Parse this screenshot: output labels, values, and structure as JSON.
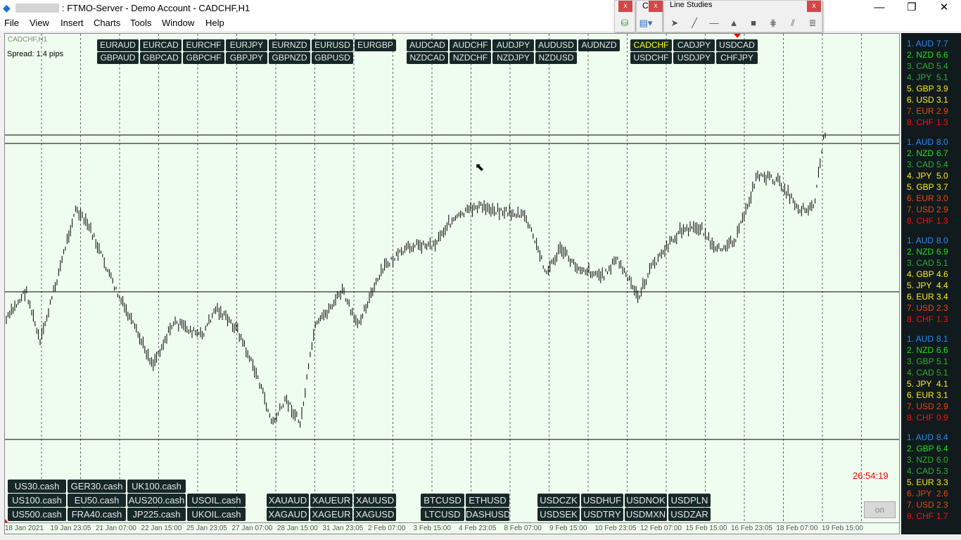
{
  "window": {
    "title": ": FTMO-Server - Demo Account - CADCHF,H1",
    "minimize": "—",
    "restore": "❐",
    "close": "✕"
  },
  "menu": [
    "File",
    "View",
    "Insert",
    "Charts",
    "Tools",
    "Window",
    "Help"
  ],
  "toolbars": {
    "t1_close": "x",
    "t2_close": "x",
    "t2_label": "C",
    "line_studies_title": "Line Studies",
    "line_studies_close": "x",
    "tools": [
      {
        "icon": "cursor-icon",
        "glyph": "➤"
      },
      {
        "icon": "trendline-icon",
        "glyph": "╱"
      },
      {
        "icon": "horizontal-line-icon",
        "glyph": "—"
      },
      {
        "icon": "triangle-icon",
        "glyph": "▲"
      },
      {
        "icon": "rectangle-icon",
        "glyph": "■"
      },
      {
        "icon": "gann-icon",
        "glyph": "⋕"
      },
      {
        "icon": "pitchfork-icon",
        "glyph": "⫽"
      },
      {
        "icon": "fibonacci-icon",
        "glyph": "≣"
      }
    ]
  },
  "chart": {
    "symbol": "CADCHF,H1",
    "spread": "Spread: 1.4 pips",
    "timer": "26:54:19",
    "on_button": "on",
    "timer_color": "#ff0000",
    "background": "#effdee"
  },
  "pair_buttons": {
    "g1r1": [
      "EURAUD",
      "EURCAD",
      "EURCHF",
      "EURJPY",
      "EURNZD",
      "EURUSD",
      "EURGBP"
    ],
    "g1r2": [
      "GBPAUD",
      "GBPCAD",
      "GBPCHF",
      "GBPJPY",
      "GBPNZD",
      "GBPUSD"
    ],
    "g2r1": [
      "AUDCAD",
      "AUDCHF",
      "AUDJPY",
      "AUDUSD",
      "AUDNZD"
    ],
    "g2r2": [
      "NZDCAD",
      "NZDCHF",
      "NZDJPY",
      "NZDUSD"
    ],
    "g3r1": [
      "CADCHF",
      "CADJPY",
      "USDCAD"
    ],
    "g3r2": [
      "USDCHF",
      "USDJPY",
      "CHFJPY"
    ],
    "active": "CADCHF"
  },
  "bottom_buttons": {
    "idx1": [
      "US30.cash",
      "GER30.cash",
      "UK100.cash"
    ],
    "idx2": [
      "US100.cash",
      "EU50.cash",
      "AUS200.cash",
      "USOIL.cash"
    ],
    "idx3": [
      "US500.cash",
      "FRA40.cash",
      "JP225.cash",
      "UKOIL.cash"
    ],
    "met1": [
      "XAUAUD",
      "XAUEUR",
      "XAUUSD"
    ],
    "met2": [
      "XAGAUD",
      "XAGEUR",
      "XAGUSD"
    ],
    "cry1": [
      "BTCUSD",
      "ETHUSD"
    ],
    "cry2": [
      "LTCUSD",
      "DASHUSD"
    ],
    "ex1": [
      "USDCZK",
      "USDHUF",
      "USDNOK",
      "USDPLN"
    ],
    "ex2": [
      "USDSEK",
      "USDTRY",
      "USDMXN",
      "USDZAR"
    ]
  },
  "time_axis": [
    "18 Jan 2021",
    "19 Jan 23:05",
    "21 Jan 07:00",
    "22 Jan 15:00",
    "25 Jan 23:05",
    "27 Jan 07:00",
    "28 Jan 15:00",
    "31 Jan 23:05",
    "2 Feb 07:00",
    "3 Feb 15:00",
    "4 Feb 23:05",
    "8 Feb 07:00",
    "9 Feb 15:00",
    "10 Feb 23:05",
    "12 Feb 07:00",
    "15 Feb 15:00",
    "16 Feb 23:05",
    "18 Feb 07:00",
    "19 Feb 15:00"
  ],
  "strength_colors": {
    "blue": "#2a8cff",
    "lime": "#22e022",
    "green": "#2fb02f",
    "yellow": "#ffee22",
    "orange": "#ee4a10",
    "red": "#ff1010"
  },
  "strength": [
    [
      [
        "1. AUD",
        "7.7",
        "blue"
      ],
      [
        "2. NZD",
        "6.6",
        "lime"
      ],
      [
        "3. CAD",
        "5.4",
        "green"
      ],
      [
        "4. JPY",
        "5.1",
        "green"
      ],
      [
        "5. GBP",
        "3.9",
        "yellow"
      ],
      [
        "6. USD",
        "3.1",
        "yellow"
      ],
      [
        "7. EUR",
        "2.9",
        "orange"
      ],
      [
        "8. CHF",
        "1.3",
        "red"
      ]
    ],
    [
      [
        "1. AUD",
        "8.0",
        "blue"
      ],
      [
        "2. NZD",
        "6.7",
        "lime"
      ],
      [
        "3. CAD",
        "5.4",
        "green"
      ],
      [
        "4. JPY",
        "5.0",
        "yellow"
      ],
      [
        "5. GBP",
        "3.7",
        "yellow"
      ],
      [
        "6. EUR",
        "3.0",
        "orange"
      ],
      [
        "7. USD",
        "2.9",
        "orange"
      ],
      [
        "8. CHF",
        "1.3",
        "red"
      ]
    ],
    [
      [
        "1. AUD",
        "8.0",
        "blue"
      ],
      [
        "2. NZD",
        "6.9",
        "lime"
      ],
      [
        "3. CAD",
        "5.1",
        "green"
      ],
      [
        "4. GBP",
        "4.6",
        "yellow"
      ],
      [
        "5. JPY",
        "4.4",
        "yellow"
      ],
      [
        "6. EUR",
        "3.4",
        "yellow"
      ],
      [
        "7. USD",
        "2.3",
        "orange"
      ],
      [
        "8. CHF",
        "1.3",
        "red"
      ]
    ],
    [
      [
        "1. AUD",
        "8.1",
        "blue"
      ],
      [
        "2. NZD",
        "6.6",
        "lime"
      ],
      [
        "3. GBP",
        "5.1",
        "green"
      ],
      [
        "4. CAD",
        "5.1",
        "green"
      ],
      [
        "5. JPY",
        "4.1",
        "yellow"
      ],
      [
        "6. EUR",
        "3.1",
        "yellow"
      ],
      [
        "7. USD",
        "2.9",
        "orange"
      ],
      [
        "8. CHF",
        "0.9",
        "red"
      ]
    ],
    [
      [
        "1. AUD",
        "8.4",
        "blue"
      ],
      [
        "2. GBP",
        "6.4",
        "lime"
      ],
      [
        "3. NZD",
        "6.0",
        "green"
      ],
      [
        "4. CAD",
        "5.3",
        "green"
      ],
      [
        "5. EUR",
        "3.3",
        "yellow"
      ],
      [
        "6. JPY",
        "2.6",
        "orange"
      ],
      [
        "7. USD",
        "2.3",
        "orange"
      ],
      [
        "8. CHF",
        "1.7",
        "red"
      ]
    ]
  ]
}
